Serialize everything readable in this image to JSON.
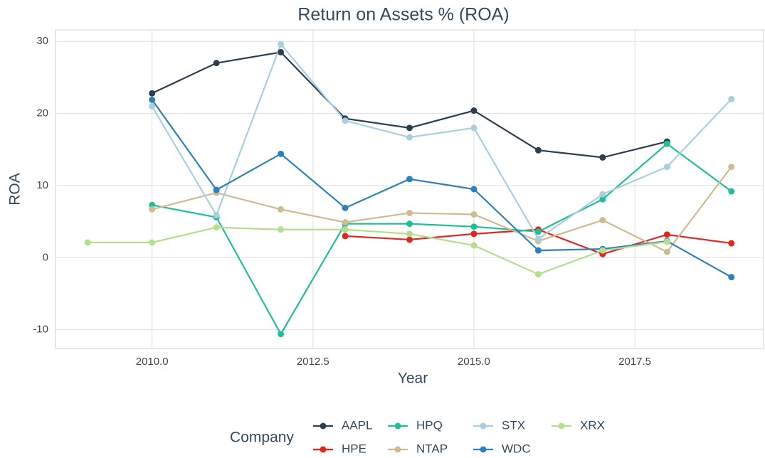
{
  "chart_data": {
    "type": "line",
    "title": "Return on Assets % (ROA)",
    "x_label": "Year",
    "y_label": "ROA",
    "legend_title": "Company",
    "legend": "bottom",
    "grid": true,
    "x": [
      2009,
      2010,
      2011,
      2012,
      2013,
      2014,
      2015,
      2016,
      2017,
      2018,
      2019
    ],
    "xlim": [
      2008.5,
      2019.5
    ],
    "xticks": [
      {
        "value": 2010,
        "label": "2010.0"
      },
      {
        "value": 2012.5,
        "label": "2012.5"
      },
      {
        "value": 2015,
        "label": "2015.0"
      },
      {
        "value": 2017.5,
        "label": "2017.5"
      }
    ],
    "ylim": [
      -12.6,
      31.6
    ],
    "yticks": [
      -10,
      0,
      10,
      20,
      30
    ],
    "series": [
      {
        "name": "AAPL",
        "color": "#2c3e50",
        "values": [
          null,
          22.8,
          27.0,
          28.5,
          19.3,
          18.0,
          20.4,
          14.9,
          13.9,
          16.1,
          null
        ]
      },
      {
        "name": "HPE",
        "color": "#e0261f",
        "values": [
          null,
          null,
          null,
          null,
          3.0,
          2.5,
          3.3,
          3.9,
          0.5,
          3.2,
          2.0
        ]
      },
      {
        "name": "HPQ",
        "color": "#1fbf9a",
        "values": [
          null,
          7.3,
          5.6,
          -10.6,
          4.7,
          4.7,
          4.3,
          3.6,
          8.1,
          15.8,
          9.2
        ]
      },
      {
        "name": "NTAP",
        "color": "#cdbb94",
        "values": [
          null,
          6.7,
          9.0,
          6.7,
          4.9,
          6.2,
          6.0,
          2.3,
          5.2,
          0.8,
          12.6
        ]
      },
      {
        "name": "STX",
        "color": "#a8cfe0",
        "values": [
          null,
          21.0,
          5.9,
          29.6,
          19.0,
          16.7,
          18.0,
          2.6,
          8.8,
          12.6,
          22.0
        ]
      },
      {
        "name": "WDC",
        "color": "#2f80b9",
        "values": [
          null,
          21.9,
          9.4,
          14.4,
          6.9,
          10.9,
          9.5,
          1.0,
          1.2,
          2.3,
          -2.7
        ]
      },
      {
        "name": "XRX",
        "color": "#b5de8c",
        "values": [
          2.1,
          2.1,
          4.2,
          3.9,
          3.9,
          3.3,
          1.7,
          -2.3,
          1.0,
          2.2,
          null
        ]
      }
    ]
  }
}
